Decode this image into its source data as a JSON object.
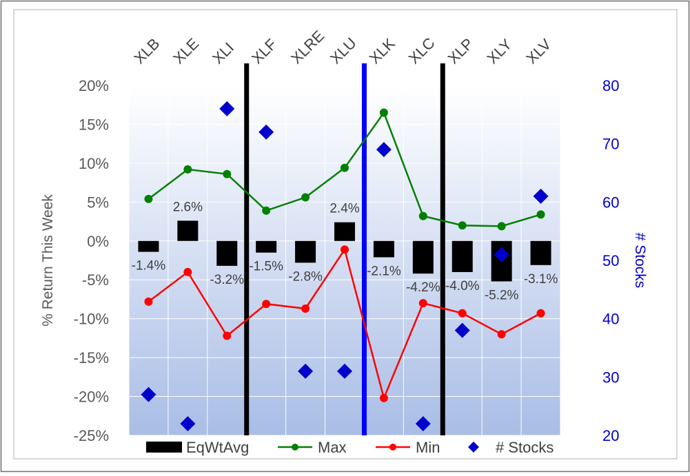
{
  "chart_data": {
    "type": "bar",
    "categories": [
      "XLB",
      "XLE",
      "XLI",
      "XLF",
      "XLRE",
      "XLU",
      "XLK",
      "XLC",
      "XLP",
      "XLY",
      "XLV"
    ],
    "series": [
      {
        "name": "EqWtAvg",
        "type": "bar",
        "axis": "left",
        "color": "#000000",
        "values": [
          -1.4,
          2.6,
          -3.2,
          -1.5,
          -2.8,
          2.4,
          -2.1,
          -4.2,
          -4.0,
          -5.2,
          -3.1
        ],
        "labels": [
          "-1.4%",
          "2.6%",
          "-3.2%",
          "-1.5%",
          "-2.8%",
          "2.4%",
          "-2.1%",
          "-4.2%",
          "-4.0%",
          "-5.2%",
          "-3.1%"
        ]
      },
      {
        "name": "Max",
        "type": "line",
        "axis": "left",
        "color": "#008000",
        "values": [
          5.4,
          9.2,
          8.6,
          3.9,
          5.6,
          9.4,
          16.5,
          3.2,
          2.0,
          1.9,
          3.4
        ]
      },
      {
        "name": "Min",
        "type": "line",
        "axis": "left",
        "color": "#ff0000",
        "values": [
          -7.8,
          -4.0,
          -12.2,
          -8.1,
          -8.7,
          -1.1,
          -20.2,
          -8.0,
          -9.3,
          -12.0,
          -9.3
        ]
      },
      {
        "name": "# Stocks",
        "type": "scatter",
        "axis": "right",
        "color": "#0000cc",
        "marker": "diamond",
        "values": [
          27,
          22,
          76,
          72,
          31,
          31,
          69,
          22,
          38,
          51,
          61
        ]
      }
    ],
    "ylabel": "% Return This Week",
    "ylim": [
      -25,
      20
    ],
    "yticks": [
      -25,
      -20,
      -15,
      -10,
      -5,
      0,
      5,
      10,
      15,
      20
    ],
    "ytick_labels": [
      "-25%",
      "-20%",
      "-15%",
      "-10%",
      "-5%",
      "0%",
      "5%",
      "10%",
      "15%",
      "20%"
    ],
    "y2label": "# Stocks",
    "y2lim": [
      20,
      80
    ],
    "y2ticks": [
      20,
      30,
      40,
      50,
      60,
      70,
      80
    ],
    "y2tick_labels": [
      "20",
      "30",
      "40",
      "50",
      "60",
      "70",
      "80"
    ],
    "y2_color": "#0000cc",
    "x_position": "top",
    "vertical_dividers": [
      {
        "after_category": "XLI",
        "color": "#000000"
      },
      {
        "after_category": "XLU",
        "color": "#0000ff"
      },
      {
        "after_category": "XLC",
        "color": "#000000"
      }
    ],
    "grid": true,
    "background": "gradient light-blue",
    "legend": {
      "position": "bottom",
      "entries": [
        "EqWtAvg",
        "Max",
        "Min",
        "# Stocks"
      ]
    }
  }
}
